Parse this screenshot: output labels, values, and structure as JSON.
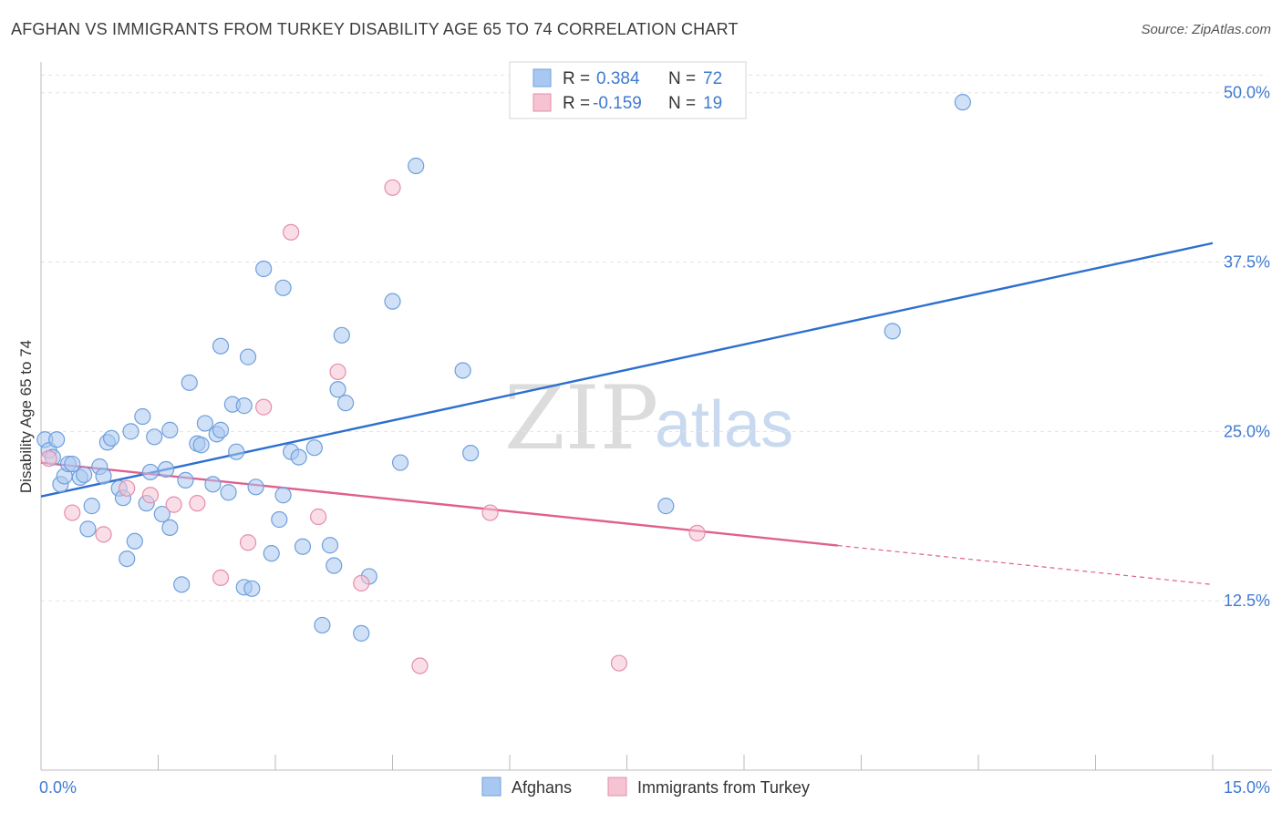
{
  "title": "AFGHAN VS IMMIGRANTS FROM TURKEY DISABILITY AGE 65 TO 74 CORRELATION CHART",
  "source": "Source: ZipAtlas.com",
  "watermark": {
    "zip": "ZIP",
    "atlas": "atlas"
  },
  "colors": {
    "afghans_fill": "#a9c8f1",
    "afghans_stroke": "#6f9fdc",
    "afghans_line": "#2d6fcf",
    "turkey_fill": "#f6c3d3",
    "turkey_stroke": "#e48eaa",
    "turkey_line": "#e0608e",
    "value_text": "#3f7ad1",
    "grid": "#e3e3e3"
  },
  "legend_box": {
    "rows": [
      {
        "r_label": "R =",
        "r_value": "0.384",
        "n_label": "N =",
        "n_value": "72"
      },
      {
        "r_label": "R =",
        "r_value": "-0.159",
        "n_label": "N =",
        "n_value": "19"
      }
    ]
  },
  "chart_data": {
    "type": "scatter",
    "title": "AFGHAN VS IMMIGRANTS FROM TURKEY DISABILITY AGE 65 TO 74 CORRELATION CHART",
    "xlabel": "",
    "ylabel": "Disability Age 65 to 74",
    "xlim": [
      0,
      15
    ],
    "ylim": [
      0,
      52
    ],
    "x_tick_labels": [
      {
        "value": 0,
        "label": "0.0%"
      },
      {
        "value": 15,
        "label": "15.0%"
      }
    ],
    "y_tick_labels": [
      {
        "value": 12.5,
        "label": "12.5%"
      },
      {
        "value": 25,
        "label": "25.0%"
      },
      {
        "value": 37.5,
        "label": "37.5%"
      },
      {
        "value": 50,
        "label": "50.0%"
      }
    ],
    "x_minor_ticks": [
      1.5,
      3,
      4.5,
      6,
      7.5,
      9,
      10.5,
      12,
      13.5,
      15
    ],
    "grid": true,
    "legend_position": "bottom-center",
    "series": [
      {
        "name": "Afghans",
        "trend": {
          "x": [
            0,
            15
          ],
          "y": [
            20.2,
            38.9
          ],
          "dashed_from": null
        },
        "points": [
          [
            0.05,
            24.4
          ],
          [
            0.1,
            23.6
          ],
          [
            0.15,
            23.1
          ],
          [
            0.2,
            24.4
          ],
          [
            0.25,
            21.1
          ],
          [
            0.3,
            21.7
          ],
          [
            0.35,
            22.6
          ],
          [
            0.4,
            22.6
          ],
          [
            0.5,
            21.6
          ],
          [
            0.55,
            21.8
          ],
          [
            0.6,
            17.8
          ],
          [
            0.65,
            19.5
          ],
          [
            0.75,
            22.4
          ],
          [
            0.8,
            21.7
          ],
          [
            0.85,
            24.2
          ],
          [
            0.9,
            24.5
          ],
          [
            1.0,
            20.8
          ],
          [
            1.05,
            20.1
          ],
          [
            1.1,
            15.6
          ],
          [
            1.15,
            25.0
          ],
          [
            1.2,
            16.9
          ],
          [
            1.3,
            26.1
          ],
          [
            1.35,
            19.7
          ],
          [
            1.4,
            22.0
          ],
          [
            1.45,
            24.6
          ],
          [
            1.55,
            18.9
          ],
          [
            1.6,
            22.2
          ],
          [
            1.65,
            17.9
          ],
          [
            1.65,
            25.1
          ],
          [
            1.8,
            13.7
          ],
          [
            1.85,
            21.4
          ],
          [
            1.9,
            28.6
          ],
          [
            2.0,
            24.1
          ],
          [
            2.05,
            24.0
          ],
          [
            2.1,
            25.6
          ],
          [
            2.2,
            21.1
          ],
          [
            2.25,
            24.8
          ],
          [
            2.3,
            25.1
          ],
          [
            2.3,
            31.3
          ],
          [
            2.4,
            20.5
          ],
          [
            2.45,
            27.0
          ],
          [
            2.5,
            23.5
          ],
          [
            2.6,
            26.9
          ],
          [
            2.6,
            13.5
          ],
          [
            2.65,
            30.5
          ],
          [
            2.7,
            13.4
          ],
          [
            2.75,
            20.9
          ],
          [
            2.85,
            37.0
          ],
          [
            2.95,
            16.0
          ],
          [
            3.05,
            18.5
          ],
          [
            3.1,
            35.6
          ],
          [
            3.1,
            20.3
          ],
          [
            3.2,
            23.5
          ],
          [
            3.3,
            23.1
          ],
          [
            3.35,
            16.5
          ],
          [
            3.5,
            23.8
          ],
          [
            3.6,
            10.7
          ],
          [
            3.7,
            16.6
          ],
          [
            3.75,
            15.1
          ],
          [
            3.8,
            28.1
          ],
          [
            3.85,
            32.1
          ],
          [
            3.9,
            27.1
          ],
          [
            4.1,
            10.1
          ],
          [
            4.2,
            14.3
          ],
          [
            4.5,
            34.6
          ],
          [
            4.6,
            22.7
          ],
          [
            4.8,
            44.6
          ],
          [
            5.4,
            29.5
          ],
          [
            5.5,
            23.4
          ],
          [
            8.0,
            19.5
          ],
          [
            10.9,
            32.4
          ],
          [
            11.8,
            49.3
          ]
        ]
      },
      {
        "name": "Immigrants from Turkey",
        "trend": {
          "x": [
            0,
            15
          ],
          "y": [
            22.7,
            13.7
          ],
          "dashed_from": 10.2
        },
        "points": [
          [
            0.1,
            23.0
          ],
          [
            0.4,
            19.0
          ],
          [
            0.8,
            17.4
          ],
          [
            1.1,
            20.8
          ],
          [
            1.4,
            20.3
          ],
          [
            1.7,
            19.6
          ],
          [
            2.0,
            19.7
          ],
          [
            2.3,
            14.2
          ],
          [
            2.65,
            16.8
          ],
          [
            2.85,
            26.8
          ],
          [
            3.2,
            39.7
          ],
          [
            3.55,
            18.7
          ],
          [
            3.8,
            29.4
          ],
          [
            4.1,
            13.8
          ],
          [
            4.5,
            43.0
          ],
          [
            4.85,
            7.7
          ],
          [
            5.75,
            19.0
          ],
          [
            7.4,
            7.9
          ],
          [
            8.4,
            17.5
          ]
        ]
      }
    ]
  }
}
